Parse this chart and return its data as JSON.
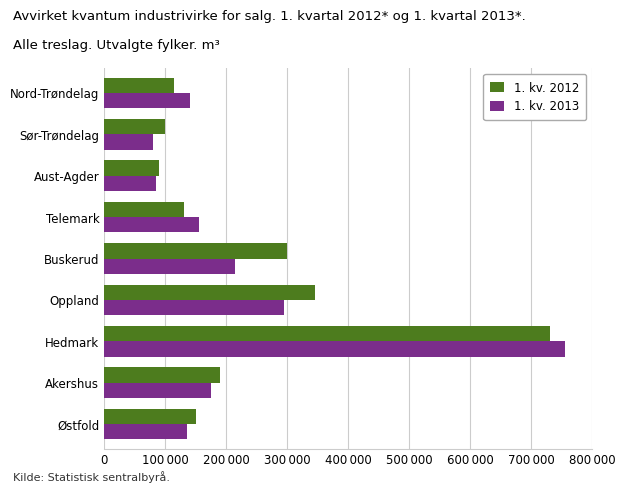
{
  "title_line1": "Avvirket kvantum industrivirke for salg. 1. kvartal 2012* og 1. kvartal 2013*.",
  "title_line2": "Alle treslag. Utvalgte fylker. m³",
  "categories": [
    "Østfold",
    "Akershus",
    "Hedmark",
    "Oppland",
    "Buskerud",
    "Telemark",
    "Aust-Agder",
    "Sør-Trøndelag",
    "Nord-Trøndelag"
  ],
  "values_2012": [
    150000,
    190000,
    730000,
    345000,
    300000,
    130000,
    90000,
    100000,
    115000
  ],
  "values_2013": [
    135000,
    175000,
    755000,
    295000,
    215000,
    155000,
    85000,
    80000,
    140000
  ],
  "color_2012": "#4d7c1e",
  "color_2013": "#7b2d8b",
  "legend_2012": "1. kv. 2012",
  "legend_2013": "1. kv. 2013",
  "xlim": [
    0,
    800000
  ],
  "xtick_values": [
    0,
    100000,
    200000,
    300000,
    400000,
    500000,
    600000,
    700000,
    800000
  ],
  "source_text": "Kilde: Statistisk sentralbyrå.",
  "background_color": "#ffffff",
  "grid_color": "#cccccc"
}
